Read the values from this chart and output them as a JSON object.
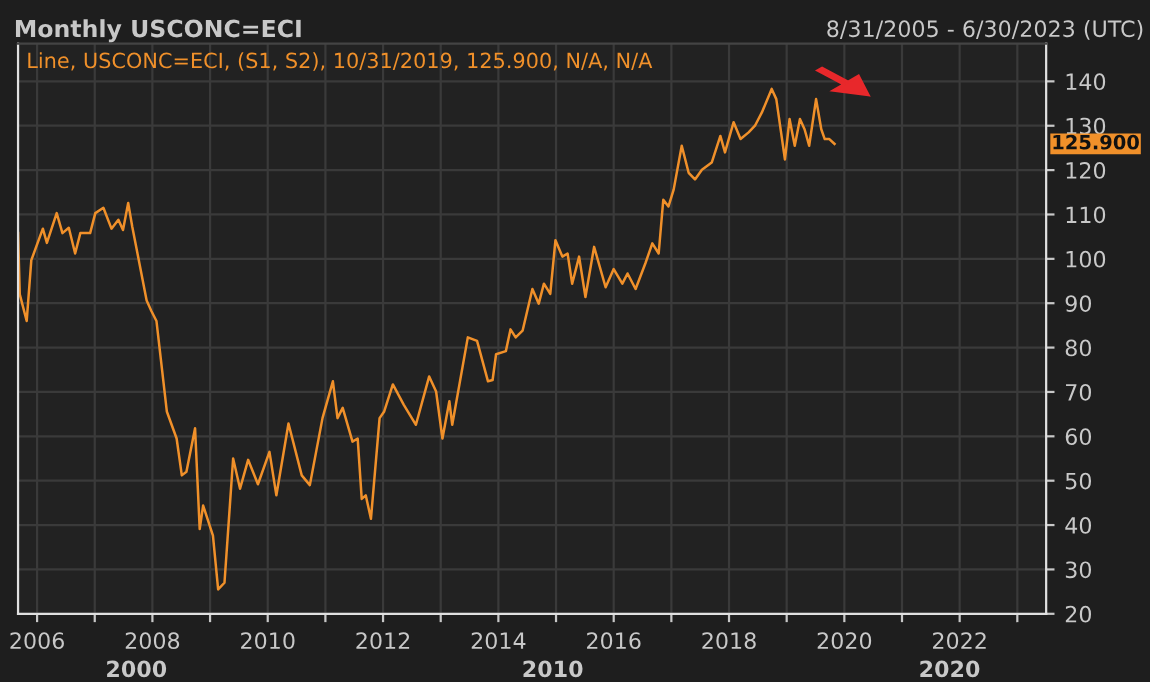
{
  "chart_data": {
    "type": "line",
    "title": "Monthly USCONC=ECI",
    "subtitle": "8/31/2005 - 6/30/2023 (UTC)",
    "annotations": [
      "Line, USCONC=ECI, (S1, S2), 10/31/2019, 125.900, N/A, N/A",
      "125.900",
      "2000",
      "2010",
      "2020"
    ],
    "series": [
      {
        "color": "#f0902a",
        "x": [
          2005.67,
          2005.7,
          2005.82,
          2005.9,
          2006.1,
          2006.17,
          2006.34,
          2006.44,
          2006.55,
          2006.66,
          2006.75,
          2006.92,
          2007.01,
          2007.15,
          2007.29,
          2007.41,
          2007.49,
          2007.58,
          2007.65,
          2007.9,
          2007.98,
          2008.07,
          2008.25,
          2008.42,
          2008.51,
          2008.59,
          2008.74,
          2008.82,
          2008.88,
          2009.05,
          2009.14,
          2009.25,
          2009.4,
          2009.52,
          2009.66,
          2009.83,
          2010.03,
          2010.15,
          2010.36,
          2010.59,
          2010.73,
          2010.95,
          2011.13,
          2011.21,
          2011.3,
          2011.47,
          2011.56,
          2011.63,
          2011.7,
          2011.79,
          2011.94,
          2012.02,
          2012.17,
          2012.36,
          2012.57,
          2012.8,
          2012.92,
          2013.03,
          2013.15,
          2013.2,
          2013.47,
          2013.63,
          2013.82,
          2013.9,
          2013.96,
          2014.13,
          2014.21,
          2014.3,
          2014.42,
          2014.59,
          2014.7,
          2014.79,
          2014.9,
          2014.99,
          2015.11,
          2015.2,
          2015.28,
          2015.4,
          2015.51,
          2015.66,
          2015.86,
          2016.0,
          2016.15,
          2016.24,
          2016.38,
          2016.55,
          2016.67,
          2016.78,
          2016.86,
          2016.95,
          2017.04,
          2017.18,
          2017.3,
          2017.41,
          2017.53,
          2017.7,
          2017.85,
          2017.93,
          2018.08,
          2018.2,
          2018.34,
          2018.45,
          2018.57,
          2018.74,
          2018.82,
          2018.97,
          2019.05,
          2019.14,
          2019.23,
          2019.31,
          2019.39,
          2019.51,
          2019.6,
          2019.66,
          2019.74,
          2019.83
        ],
        "values": [
          105.8,
          92,
          86,
          99.7,
          106.8,
          103.6,
          110.3,
          105.8,
          107,
          101.2,
          105.8,
          105.8,
          110.3,
          111.5,
          106.8,
          108.8,
          106.5,
          112.6,
          107.3,
          90.6,
          88.3,
          86,
          65.6,
          59.5,
          51.2,
          52,
          61.8,
          39.1,
          44.4,
          37.6,
          25.5,
          27,
          55,
          48.2,
          54.7,
          49.2,
          56.5,
          46.7,
          62.9,
          51.2,
          49,
          64.1,
          72.4,
          64.1,
          66.4,
          58.8,
          59.5,
          45.9,
          46.7,
          41.4,
          64.1,
          65.6,
          71.7,
          67.1,
          62.6,
          73.5,
          70.1,
          59.5,
          67.9,
          62.6,
          82.3,
          81.5,
          72.4,
          72.7,
          78.5,
          79.2,
          84.1,
          82.3,
          83.8,
          93.2,
          89.9,
          94.4,
          92.1,
          104.2,
          100.5,
          101.2,
          94.4,
          100.5,
          91.4,
          102.7,
          93.6,
          97.7,
          94.4,
          96.7,
          93.2,
          99,
          103.5,
          101.2,
          113.3,
          111.8,
          115.6,
          125.5,
          119.4,
          117.9,
          120.1,
          121.7,
          127.7,
          124,
          130.8,
          127,
          128.5,
          130,
          133,
          138.3,
          136,
          122.4,
          131.5,
          125.5,
          131.5,
          129.2,
          125.5,
          136,
          129.2,
          127,
          127,
          125.9
        ]
      }
    ],
    "xlim": [
      2005.67,
      2023.5
    ],
    "xticks": [
      2006,
      {
        "value": 2007,
        "label": null
      },
      2008,
      {
        "value": 2009,
        "label": null
      },
      2010,
      {
        "value": 2011,
        "label": null
      },
      2012,
      {
        "value": 2013,
        "label": null
      },
      2014,
      {
        "value": 2015,
        "label": null
      },
      2016,
      {
        "value": 2017,
        "label": null
      },
      2018,
      {
        "value": 2019,
        "label": null
      },
      2020,
      {
        "value": 2021,
        "label": null
      },
      2022,
      {
        "value": 2023,
        "label": null
      }
    ],
    "ylim": [
      20,
      148.5
    ],
    "yticks": [
      20,
      30,
      40,
      50,
      60,
      70,
      80,
      90,
      100,
      110,
      120,
      130,
      140
    ],
    "grid": true,
    "legend": false,
    "marker": "none",
    "line_style": "solid"
  }
}
